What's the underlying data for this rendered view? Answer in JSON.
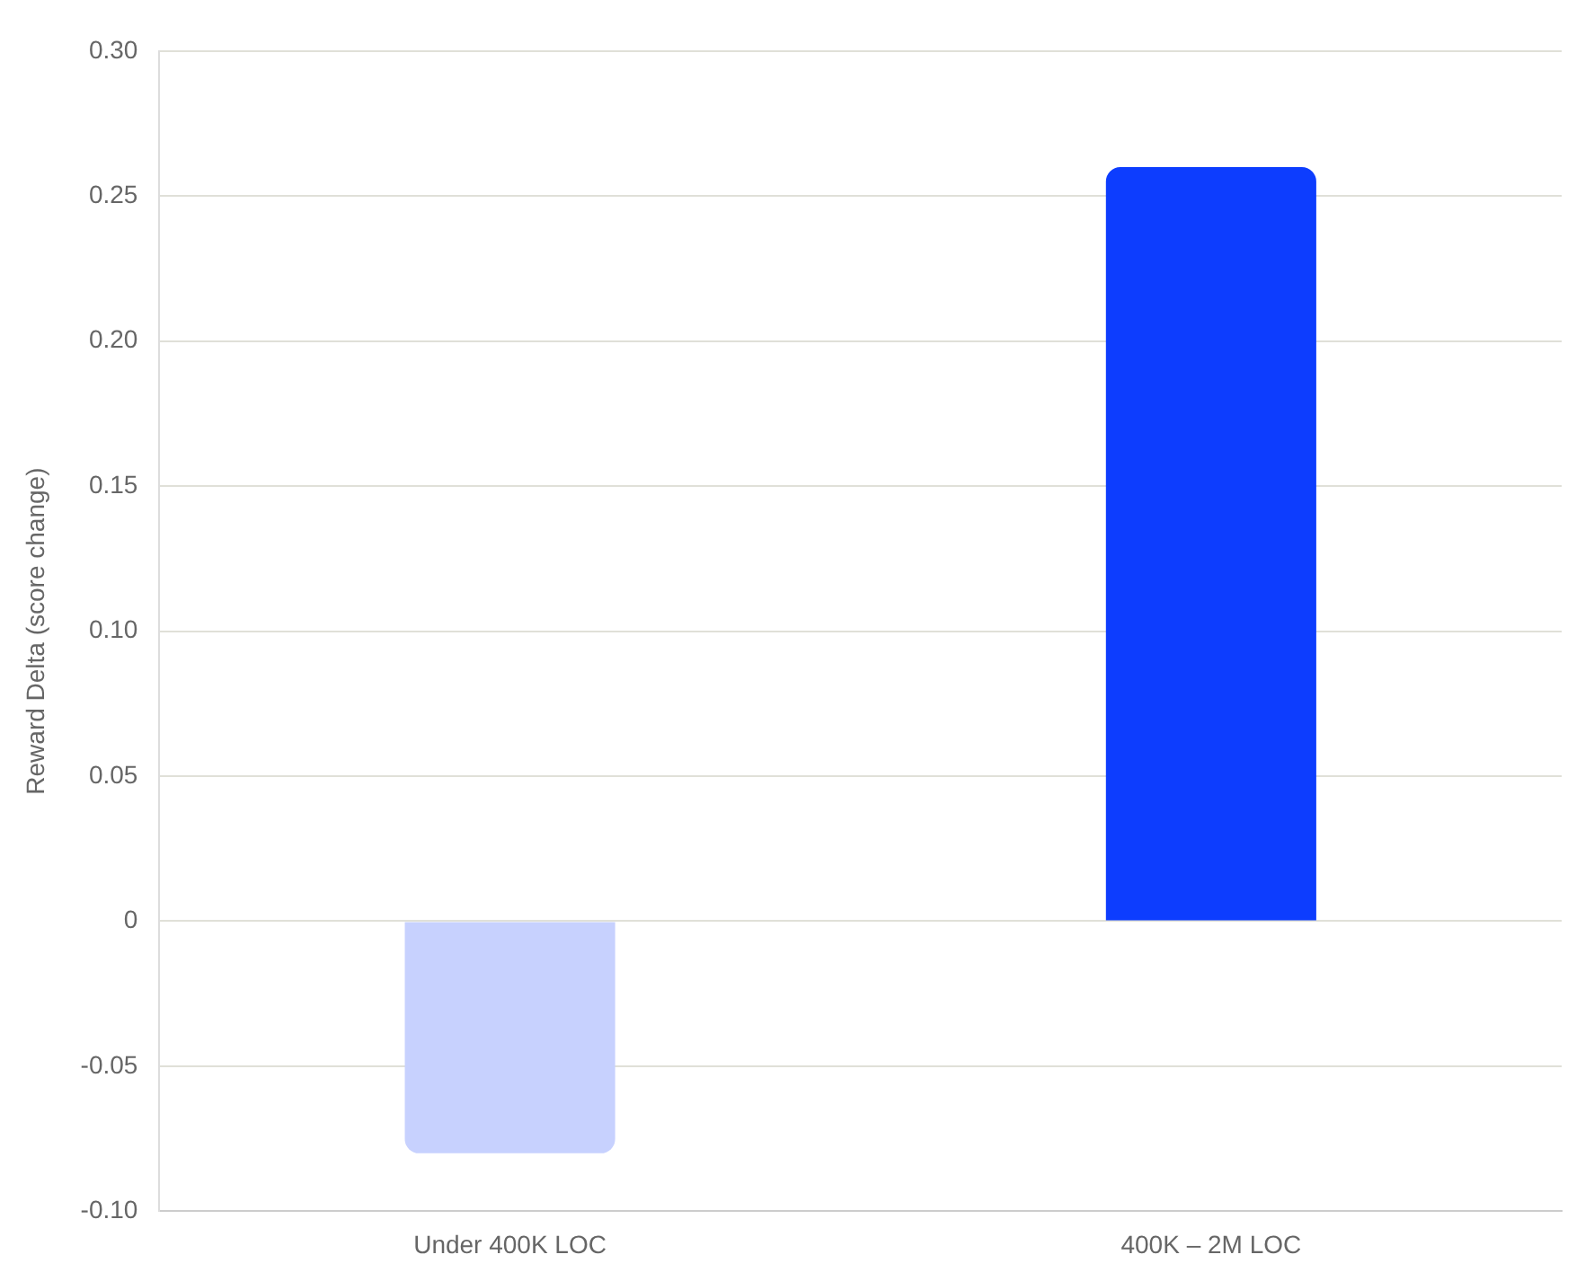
{
  "chart_data": {
    "type": "bar",
    "ylabel": "Reward Delta (score change)",
    "categories": [
      "Under 400K LOC",
      "400K – 2M LOC"
    ],
    "values": [
      -0.08,
      0.26
    ],
    "colors": [
      "#c7d1fe",
      "#0d3dfe"
    ],
    "ylim": [
      -0.1,
      0.3
    ],
    "yticks": [
      {
        "value": -0.1,
        "label": "-0.10"
      },
      {
        "value": -0.05,
        "label": "-0.05"
      },
      0,
      {
        "value": 0.05,
        "label": "0.05"
      },
      {
        "value": 0.1,
        "label": "0.10"
      },
      {
        "value": 0.15,
        "label": "0.15"
      },
      {
        "value": 0.2,
        "label": "0.20"
      },
      {
        "value": 0.25,
        "label": "0.25"
      },
      {
        "value": 0.3,
        "label": "0.30"
      }
    ],
    "grid": "y",
    "legend": false
  }
}
